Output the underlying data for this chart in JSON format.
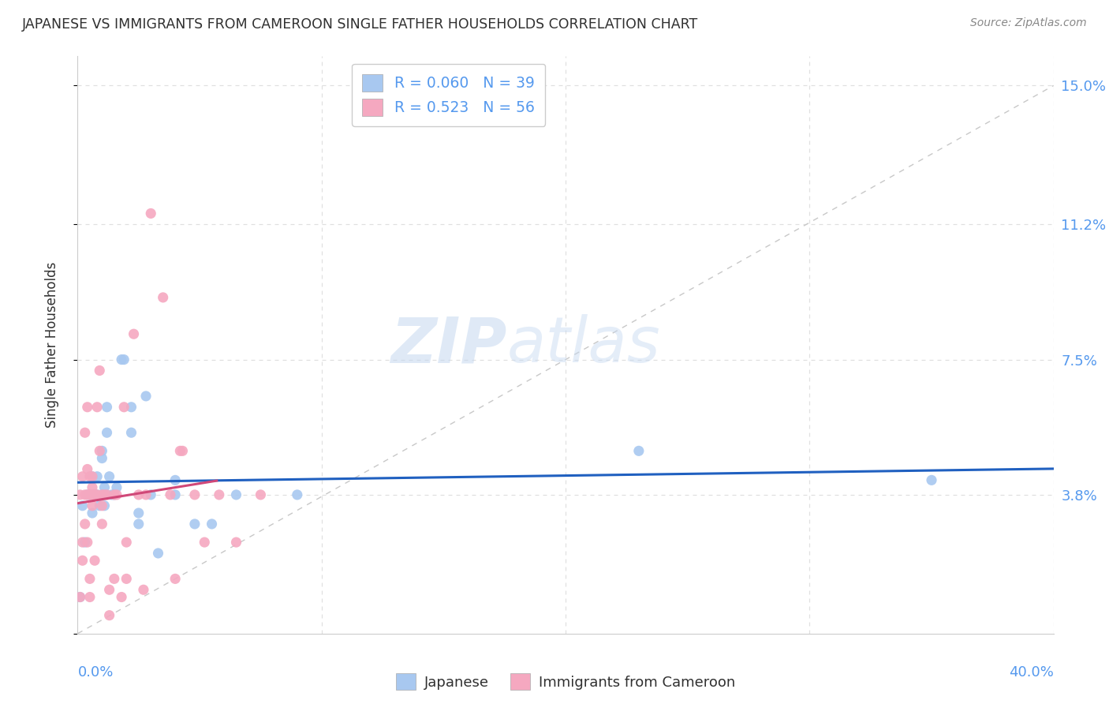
{
  "title": "JAPANESE VS IMMIGRANTS FROM CAMEROON SINGLE FATHER HOUSEHOLDS CORRELATION CHART",
  "source": "Source: ZipAtlas.com",
  "ylabel": "Single Father Households",
  "yticks": [
    0.0,
    0.038,
    0.075,
    0.112,
    0.15
  ],
  "xlim": [
    0.0,
    0.4
  ],
  "ylim": [
    0.0,
    0.158
  ],
  "watermark_zip": "ZIP",
  "watermark_atlas": "atlas",
  "legend_entries": [
    {
      "r": "0.060",
      "n": "39",
      "color": "#a8c8f0"
    },
    {
      "r": "0.523",
      "n": "56",
      "color": "#f5a8c0"
    }
  ],
  "japanese_points": [
    [
      0.001,
      0.01
    ],
    [
      0.002,
      0.035
    ],
    [
      0.003,
      0.025
    ],
    [
      0.004,
      0.038
    ],
    [
      0.005,
      0.038
    ],
    [
      0.006,
      0.033
    ],
    [
      0.006,
      0.043
    ],
    [
      0.007,
      0.038
    ],
    [
      0.008,
      0.043
    ],
    [
      0.008,
      0.038
    ],
    [
      0.009,
      0.035
    ],
    [
      0.01,
      0.05
    ],
    [
      0.01,
      0.048
    ],
    [
      0.01,
      0.038
    ],
    [
      0.011,
      0.035
    ],
    [
      0.011,
      0.04
    ],
    [
      0.012,
      0.055
    ],
    [
      0.012,
      0.062
    ],
    [
      0.013,
      0.043
    ],
    [
      0.014,
      0.038
    ],
    [
      0.015,
      0.038
    ],
    [
      0.016,
      0.04
    ],
    [
      0.018,
      0.075
    ],
    [
      0.019,
      0.075
    ],
    [
      0.022,
      0.062
    ],
    [
      0.022,
      0.055
    ],
    [
      0.025,
      0.033
    ],
    [
      0.025,
      0.03
    ],
    [
      0.028,
      0.065
    ],
    [
      0.03,
      0.038
    ],
    [
      0.033,
      0.022
    ],
    [
      0.04,
      0.038
    ],
    [
      0.04,
      0.042
    ],
    [
      0.048,
      0.03
    ],
    [
      0.055,
      0.03
    ],
    [
      0.065,
      0.038
    ],
    [
      0.09,
      0.038
    ],
    [
      0.23,
      0.05
    ],
    [
      0.35,
      0.042
    ]
  ],
  "cameroon_points": [
    [
      0.001,
      0.01
    ],
    [
      0.001,
      0.038
    ],
    [
      0.002,
      0.025
    ],
    [
      0.002,
      0.02
    ],
    [
      0.002,
      0.043
    ],
    [
      0.003,
      0.055
    ],
    [
      0.003,
      0.038
    ],
    [
      0.003,
      0.03
    ],
    [
      0.004,
      0.038
    ],
    [
      0.004,
      0.062
    ],
    [
      0.004,
      0.045
    ],
    [
      0.004,
      0.025
    ],
    [
      0.005,
      0.01
    ],
    [
      0.005,
      0.038
    ],
    [
      0.005,
      0.043
    ],
    [
      0.005,
      0.015
    ],
    [
      0.006,
      0.035
    ],
    [
      0.006,
      0.038
    ],
    [
      0.006,
      0.04
    ],
    [
      0.006,
      0.043
    ],
    [
      0.007,
      0.038
    ],
    [
      0.007,
      0.02
    ],
    [
      0.007,
      0.038
    ],
    [
      0.008,
      0.062
    ],
    [
      0.008,
      0.038
    ],
    [
      0.009,
      0.072
    ],
    [
      0.009,
      0.05
    ],
    [
      0.01,
      0.03
    ],
    [
      0.01,
      0.035
    ],
    [
      0.01,
      0.038
    ],
    [
      0.011,
      0.038
    ],
    [
      0.012,
      0.038
    ],
    [
      0.013,
      0.012
    ],
    [
      0.013,
      0.005
    ],
    [
      0.015,
      0.015
    ],
    [
      0.015,
      0.038
    ],
    [
      0.016,
      0.038
    ],
    [
      0.018,
      0.01
    ],
    [
      0.019,
      0.062
    ],
    [
      0.02,
      0.025
    ],
    [
      0.02,
      0.015
    ],
    [
      0.023,
      0.082
    ],
    [
      0.025,
      0.038
    ],
    [
      0.027,
      0.012
    ],
    [
      0.028,
      0.038
    ],
    [
      0.03,
      0.115
    ],
    [
      0.035,
      0.092
    ],
    [
      0.038,
      0.038
    ],
    [
      0.04,
      0.015
    ],
    [
      0.042,
      0.05
    ],
    [
      0.043,
      0.05
    ],
    [
      0.048,
      0.038
    ],
    [
      0.052,
      0.025
    ],
    [
      0.058,
      0.038
    ],
    [
      0.065,
      0.025
    ],
    [
      0.075,
      0.038
    ]
  ],
  "japanese_color": "#a8c8f0",
  "cameroon_color": "#f5a8c0",
  "japanese_line_color": "#2060c0",
  "cameroon_line_color": "#d04878",
  "diagonal_color": "#c8c8c8",
  "grid_color": "#e0e0e0",
  "title_color": "#303030",
  "axis_label_color": "#5599ee",
  "source_color": "#888888",
  "text_color": "#303030",
  "japanese_R": 0.06,
  "japanese_N": 39,
  "cameroon_R": 0.523,
  "cameroon_N": 56
}
